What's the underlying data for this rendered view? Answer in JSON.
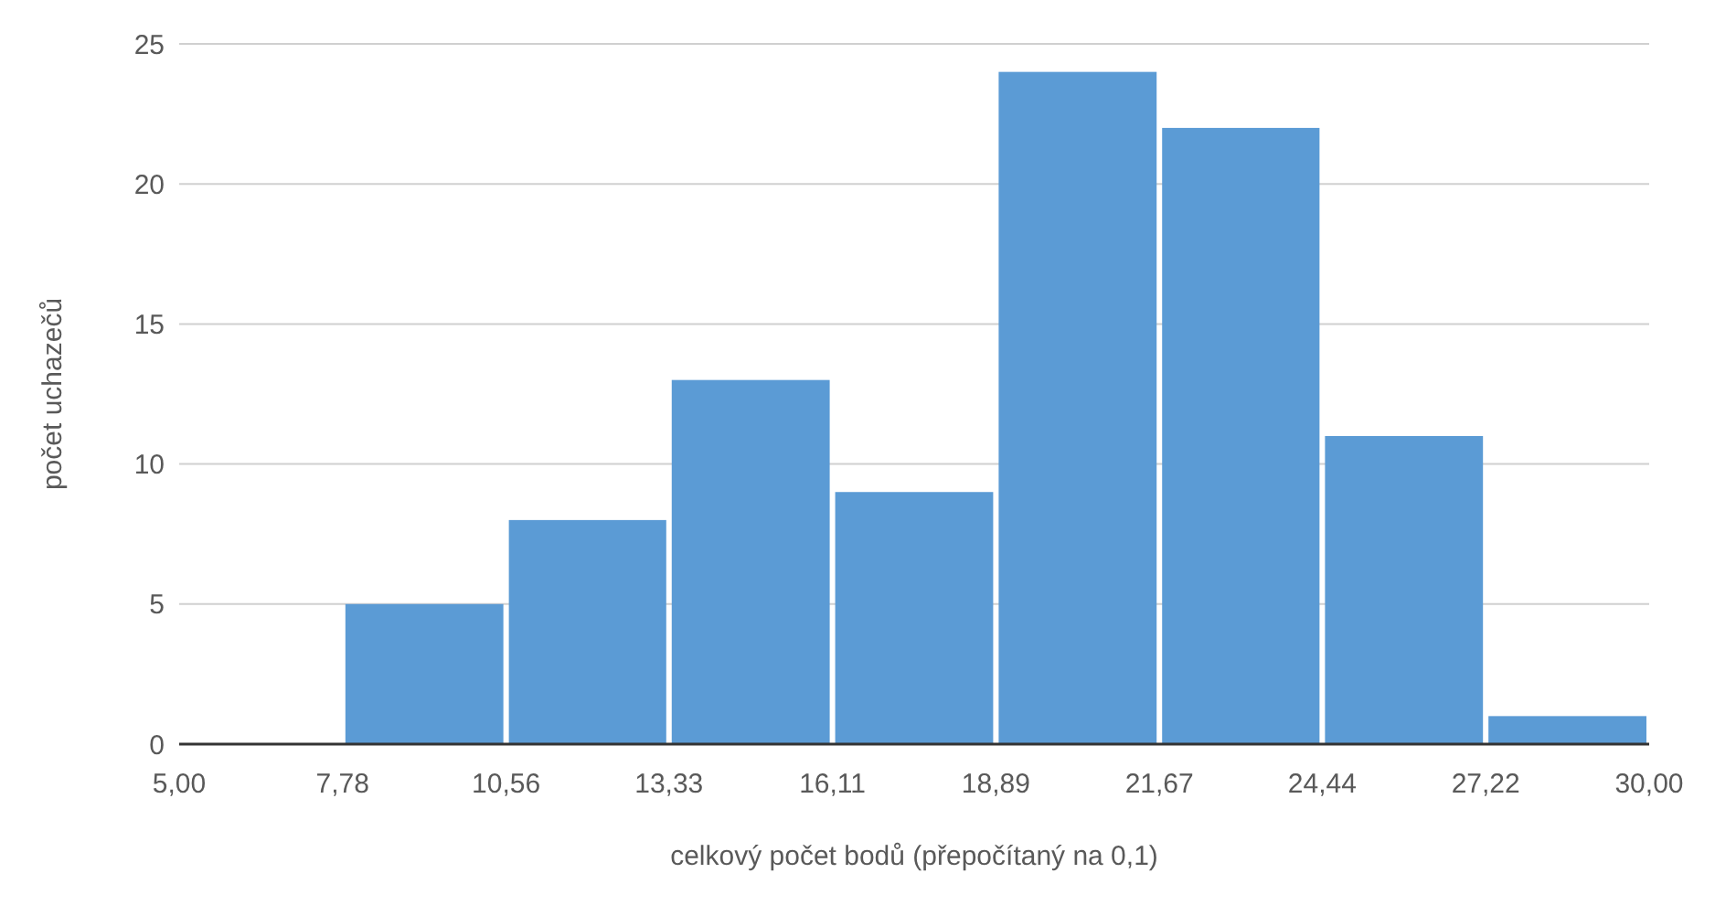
{
  "chart_data": {
    "type": "histogram",
    "xlabel": "celkový počet bodů (přepočítaný na 0,1)",
    "ylabel": "počet uchazečů",
    "bins": [
      7.78,
      10.56,
      13.33,
      16.11,
      18.89,
      21.67,
      24.44,
      27.22,
      30.0
    ],
    "values": [
      5,
      8,
      13,
      9,
      24,
      22,
      11,
      1
    ],
    "color": "#5b9bd5",
    "xlim": [
      5,
      30
    ],
    "xticks": [
      {
        "value": 5,
        "label": "5,00"
      },
      {
        "value": 7.78,
        "label": "7,78"
      },
      {
        "value": 10.56,
        "label": "10,56"
      },
      {
        "value": 13.33,
        "label": "13,33"
      },
      {
        "value": 16.11,
        "label": "16,11"
      },
      {
        "value": 18.89,
        "label": "18,89"
      },
      {
        "value": 21.67,
        "label": "21,67"
      },
      {
        "value": 24.44,
        "label": "24,44"
      },
      {
        "value": 27.22,
        "label": "27,22"
      },
      {
        "value": 30,
        "label": "30,00"
      }
    ],
    "ylim": [
      0,
      25
    ],
    "yticks": [
      0,
      5,
      10,
      15,
      20,
      25
    ],
    "grid": "y"
  }
}
